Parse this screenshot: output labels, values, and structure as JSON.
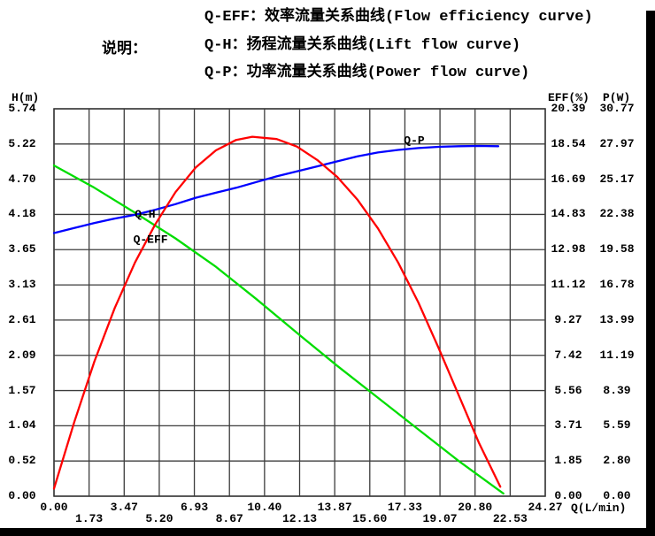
{
  "page": {
    "background": "#ffffff",
    "edge_color": "#000000"
  },
  "legend": {
    "heading": "说明：",
    "items": [
      "Q-EFF：效率流量关系曲线(Flow efficiency curve)",
      "Q-H：扬程流量关系曲线(Lift flow curve)",
      "Q-P：功率流量关系曲线(Power flow curve)"
    ]
  },
  "chart_data": {
    "type": "line",
    "grid": {
      "cols": 14,
      "rows": 11,
      "color": "#3c3c3c",
      "on": true
    },
    "x_axis": {
      "id": "Q",
      "title": "Q(L/min)",
      "min": 0,
      "max": 24.27,
      "tick_labels": [
        "0.00",
        "1.73",
        "3.47",
        "5.20",
        "6.93",
        "8.67",
        "10.40",
        "12.13",
        "13.87",
        "15.60",
        "17.33",
        "19.07",
        "20.80",
        "22.53",
        "24.27"
      ]
    },
    "y_axis_left": {
      "id": "H",
      "title": "H(m)",
      "min": 0,
      "max": 5.74,
      "tick_labels": [
        "5.74",
        "5.22",
        "4.70",
        "4.18",
        "3.65",
        "3.13",
        "2.61",
        "2.09",
        "1.57",
        "1.04",
        "0.52",
        "0.00"
      ]
    },
    "y_axes_right": [
      {
        "id": "EFF",
        "title": "EFF(%)",
        "min": 0,
        "max": 20.39,
        "tick_labels": [
          "20.39",
          "18.54",
          "16.69",
          "14.83",
          "12.98",
          "11.12",
          "9.27",
          "7.42",
          "5.56",
          "3.71",
          "1.85",
          "0.00"
        ]
      },
      {
        "id": "P",
        "title": "P(W)",
        "min": 0,
        "max": 30.77,
        "tick_labels": [
          "30.77",
          "27.97",
          "25.17",
          "22.38",
          "19.58",
          "16.78",
          "13.99",
          "11.19",
          "8.39",
          "5.59",
          "2.80",
          "0.00"
        ]
      }
    ],
    "series": [
      {
        "name": "Q-H",
        "axis": "H",
        "color": "#00dd00",
        "label_at": {
          "q": 4.5,
          "value": 4.19
        },
        "points": [
          [
            0,
            4.9
          ],
          [
            2,
            4.57
          ],
          [
            4,
            4.2
          ],
          [
            6,
            3.82
          ],
          [
            8,
            3.4
          ],
          [
            10,
            2.92
          ],
          [
            12,
            2.42
          ],
          [
            14,
            1.93
          ],
          [
            16,
            1.46
          ],
          [
            18,
            0.99
          ],
          [
            20,
            0.52
          ],
          [
            22.2,
            0.04
          ]
        ]
      },
      {
        "name": "Q-P",
        "axis": "P",
        "color": "#0000ff",
        "label_at": {
          "q": 17.8,
          "value": 28.31
        },
        "points": [
          [
            0,
            20.9
          ],
          [
            1,
            21.3
          ],
          [
            2,
            21.7
          ],
          [
            3,
            22.05
          ],
          [
            4,
            22.35
          ],
          [
            5,
            22.75
          ],
          [
            6,
            23.2
          ],
          [
            7,
            23.7
          ],
          [
            8,
            24.1
          ],
          [
            9,
            24.5
          ],
          [
            10,
            24.95
          ],
          [
            11,
            25.4
          ],
          [
            12,
            25.8
          ],
          [
            13,
            26.2
          ],
          [
            14,
            26.6
          ],
          [
            15,
            27.0
          ],
          [
            16,
            27.3
          ],
          [
            17,
            27.5
          ],
          [
            18,
            27.65
          ],
          [
            19,
            27.75
          ],
          [
            20,
            27.8
          ],
          [
            21,
            27.82
          ],
          [
            21.95,
            27.8
          ]
        ]
      },
      {
        "name": "Q-EFF",
        "axis": "EFF",
        "color": "#ff0000",
        "label_at": {
          "q": 4.77,
          "value": 13.55
        },
        "points": [
          [
            0,
            0.4
          ],
          [
            1,
            3.9
          ],
          [
            2,
            7.1
          ],
          [
            3,
            9.9
          ],
          [
            4,
            12.3
          ],
          [
            5,
            14.3
          ],
          [
            6,
            16.0
          ],
          [
            7,
            17.3
          ],
          [
            8,
            18.2
          ],
          [
            9,
            18.75
          ],
          [
            9.8,
            18.92
          ],
          [
            11,
            18.8
          ],
          [
            12,
            18.4
          ],
          [
            13,
            17.7
          ],
          [
            14,
            16.8
          ],
          [
            15,
            15.6
          ],
          [
            16,
            14.1
          ],
          [
            17,
            12.3
          ],
          [
            18,
            10.2
          ],
          [
            19,
            7.8
          ],
          [
            20,
            5.3
          ],
          [
            21,
            2.8
          ],
          [
            22.05,
            0.5
          ]
        ]
      }
    ]
  }
}
